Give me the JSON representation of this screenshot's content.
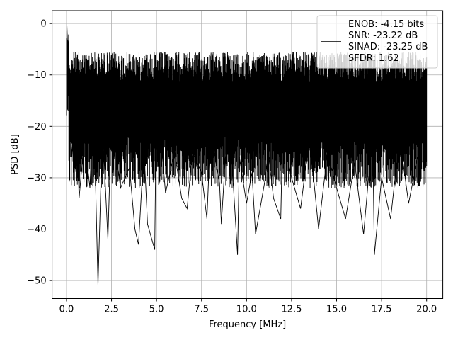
{
  "chart_data": {
    "type": "line",
    "xlabel": "Frequency [MHz]",
    "ylabel": "PSD [dB]",
    "xlim": [
      -0.8,
      20.9
    ],
    "ylim": [
      -53.5,
      2.5
    ],
    "x_ticks": [
      0.0,
      2.5,
      5.0,
      7.5,
      10.0,
      12.5,
      15.0,
      17.5,
      20.0
    ],
    "x_tick_labels": [
      "0.0",
      "2.5",
      "5.0",
      "7.5",
      "10.0",
      "12.5",
      "15.0",
      "17.5",
      "20.0"
    ],
    "y_ticks": [
      0,
      -10,
      -20,
      -30,
      -40,
      -50
    ],
    "y_tick_labels": [
      "0",
      "−10",
      "−20",
      "−30",
      "−40",
      "−50"
    ],
    "grid": true,
    "legend_position": "top-right",
    "legend_entries": [
      "ENOB: -4.15 bits",
      "SNR: -23.22 dB",
      "SINAD: -23.25 dB",
      "SFDR: 1.62"
    ],
    "line_color": "#000000",
    "series": [
      {
        "x": [
          0.0,
          0.02,
          0.05,
          0.08,
          0.1,
          0.3,
          0.5,
          0.7,
          1.0,
          1.3,
          1.5,
          1.75,
          2.0,
          2.3,
          2.5,
          3.0,
          3.5,
          3.8,
          4.0,
          4.3,
          4.5,
          4.9,
          5.0,
          5.5,
          6.0,
          6.4,
          6.7,
          7.0,
          7.5,
          7.8,
          8.0,
          8.5,
          8.6,
          9.0,
          9.5,
          9.6,
          10.0,
          10.3,
          10.5,
          11.0,
          11.2,
          11.5,
          11.9,
          12.0,
          12.5,
          13.0,
          13.5,
          14.0,
          14.5,
          15.0,
          15.5,
          16.0,
          16.5,
          17.0,
          17.1,
          17.5,
          18.0,
          18.5,
          19.0,
          19.5,
          19.8,
          20.0
        ],
        "y": [
          -8,
          0,
          -3,
          -5,
          -9,
          -26,
          -12,
          -34,
          -22,
          -32,
          -14,
          -51,
          -20,
          -42,
          -18,
          -32,
          -28,
          -40,
          -43,
          -24,
          -39,
          -44,
          -12,
          -33,
          -25,
          -34,
          -36,
          -25,
          -29,
          -38,
          -21,
          -31,
          -39,
          -16,
          -45,
          -26,
          -35,
          -29,
          -41,
          -31,
          -25,
          -34,
          -38,
          -21,
          -30,
          -36,
          -22,
          -40,
          -25,
          -32,
          -38,
          -27,
          -41,
          -21,
          -45,
          -30,
          -38,
          -22,
          -35,
          -26,
          -27,
          -18
        ]
      }
    ]
  }
}
